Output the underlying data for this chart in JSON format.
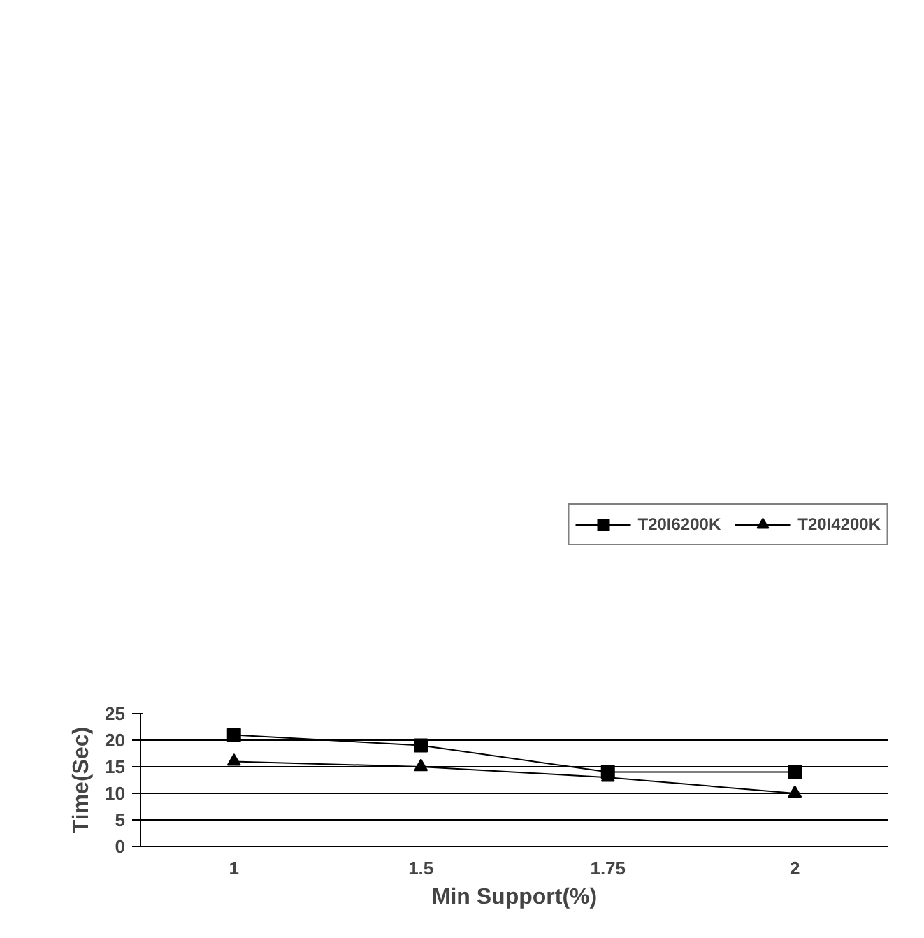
{
  "chart_data": {
    "type": "line",
    "xlabel": "Min Support(%)",
    "ylabel": "Time(Sec)",
    "categories": [
      "1",
      "1.5",
      "1.75",
      "2"
    ],
    "series": [
      {
        "name": "T20I6200K",
        "color": "#000000",
        "marker": "square",
        "values": [
          21,
          19,
          14,
          14
        ]
      },
      {
        "name": "T20I4200K",
        "color": "#000000",
        "marker": "triangle",
        "values": [
          16,
          15,
          13,
          10
        ]
      }
    ],
    "ylim": [
      0,
      25
    ],
    "yticks": [
      0,
      5,
      10,
      15,
      20,
      25
    ],
    "grid": "y",
    "legend": "top right",
    "line_style": "solid"
  }
}
